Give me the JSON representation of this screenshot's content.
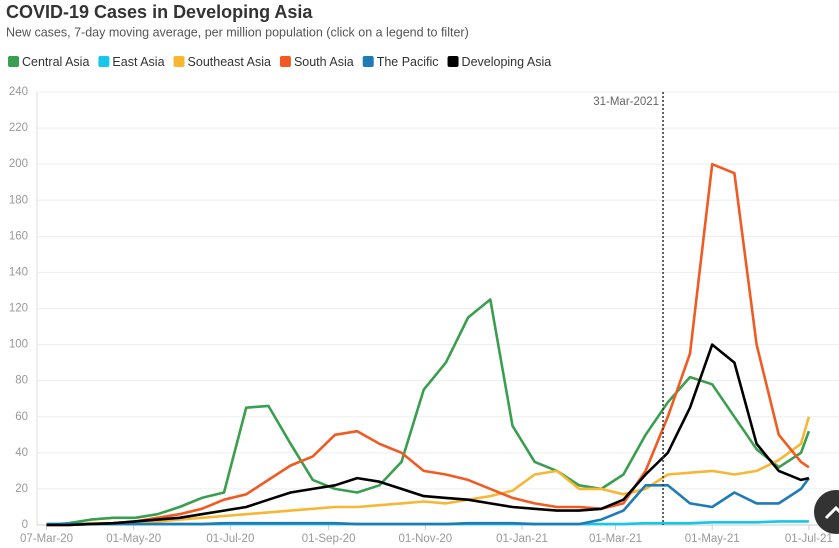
{
  "chart_data": {
    "type": "line",
    "title": "COVID-19 Cases in Developing Asia",
    "subtitle": "New cases, 7-day moving average, per million population (click on a legend to filter)",
    "x": [
      "2020-03-07",
      "2020-03-21",
      "2020-04-04",
      "2020-04-18",
      "2020-05-02",
      "2020-05-16",
      "2020-05-30",
      "2020-06-13",
      "2020-06-27",
      "2020-07-11",
      "2020-07-25",
      "2020-08-08",
      "2020-08-22",
      "2020-09-05",
      "2020-09-19",
      "2020-10-03",
      "2020-10-17",
      "2020-10-31",
      "2020-11-14",
      "2020-11-28",
      "2020-12-12",
      "2020-12-26",
      "2021-01-09",
      "2021-01-23",
      "2021-02-06",
      "2021-02-20",
      "2021-03-06",
      "2021-03-20",
      "2021-04-03",
      "2021-04-17",
      "2021-05-01",
      "2021-05-15",
      "2021-05-29",
      "2021-06-12",
      "2021-06-26",
      "2021-07-01"
    ],
    "series": [
      {
        "name": "Central Asia",
        "color": "#3a9e4f",
        "values": [
          0,
          1,
          3,
          4,
          4,
          6,
          10,
          15,
          18,
          65,
          66,
          45,
          25,
          20,
          18,
          22,
          35,
          75,
          90,
          115,
          125,
          55,
          35,
          30,
          22,
          20,
          28,
          50,
          68,
          82,
          78,
          60,
          42,
          32,
          40,
          52
        ]
      },
      {
        "name": "East Asia",
        "color": "#17c6e8",
        "values": [
          0.5,
          0.5,
          0.5,
          0.5,
          0.5,
          0.5,
          0.5,
          0.5,
          0.5,
          0.5,
          0.5,
          0.5,
          0.5,
          0.5,
          0.5,
          0.5,
          0.5,
          0.5,
          0.5,
          0.5,
          0.5,
          0.5,
          0.5,
          0.5,
          0.5,
          0.5,
          0.5,
          1,
          1,
          1,
          1.5,
          1.5,
          1.5,
          2,
          2,
          2
        ]
      },
      {
        "name": "Southeast Asia",
        "color": "#f7b733",
        "values": [
          0,
          0,
          1,
          1,
          2,
          2,
          3,
          4,
          5,
          6,
          7,
          8,
          9,
          10,
          10,
          11,
          12,
          13,
          12,
          14,
          16,
          19,
          28,
          30,
          20,
          20,
          17,
          20,
          28,
          29,
          30,
          28,
          30,
          36,
          45,
          60
        ]
      },
      {
        "name": "South Asia",
        "color": "#f15a22",
        "values": [
          0,
          0,
          0.5,
          1,
          2,
          4,
          6,
          9,
          14,
          17,
          25,
          33,
          38,
          50,
          52,
          45,
          40,
          30,
          28,
          25,
          20,
          15,
          12,
          10,
          10,
          9,
          12,
          30,
          60,
          95,
          200,
          195,
          100,
          50,
          35,
          32
        ]
      },
      {
        "name": "The Pacific",
        "color": "#1f7bb6",
        "values": [
          0.5,
          0.5,
          0.5,
          0.5,
          0.5,
          0.5,
          0.5,
          0.5,
          1,
          1,
          1,
          1,
          1,
          1,
          0.5,
          0.5,
          0.5,
          0.5,
          0.5,
          1,
          1,
          1,
          0.5,
          0.5,
          0.5,
          3,
          8,
          22,
          22,
          12,
          10,
          18,
          12,
          12,
          20,
          26
        ]
      },
      {
        "name": "Developing Asia",
        "color": "#000000",
        "values": [
          0,
          0,
          0.5,
          1,
          2,
          3,
          4,
          6,
          8,
          10,
          14,
          18,
          20,
          22,
          26,
          24,
          20,
          16,
          15,
          14,
          12,
          10,
          9,
          8,
          8,
          9,
          14,
          28,
          40,
          65,
          100,
          90,
          45,
          30,
          25,
          26
        ]
      }
    ],
    "xlim": [
      "2020-03-01",
      "2021-07-20"
    ],
    "xticks": [
      {
        "value": "2020-03-07",
        "label": "07-Mar-20"
      },
      {
        "value": "2020-05-01",
        "label": "01-May-20"
      },
      {
        "value": "2020-07-01",
        "label": "01-Jul-20"
      },
      {
        "value": "2020-09-01",
        "label": "01-Sep-20"
      },
      {
        "value": "2020-11-01",
        "label": "01-Nov-20"
      },
      {
        "value": "2021-01-01",
        "label": "01-Jan-21"
      },
      {
        "value": "2021-03-01",
        "label": "01-Mar-21"
      },
      {
        "value": "2021-05-01",
        "label": "01-May-21"
      },
      {
        "value": "2021-07-01",
        "label": "01-Jul-21"
      }
    ],
    "ylim": [
      0,
      240
    ],
    "yticks": [
      0,
      20,
      40,
      60,
      80,
      100,
      120,
      140,
      160,
      180,
      200,
      220,
      240
    ],
    "grid": true,
    "annotation": {
      "x": "2021-03-31",
      "label": "31-Mar-2021"
    }
  }
}
